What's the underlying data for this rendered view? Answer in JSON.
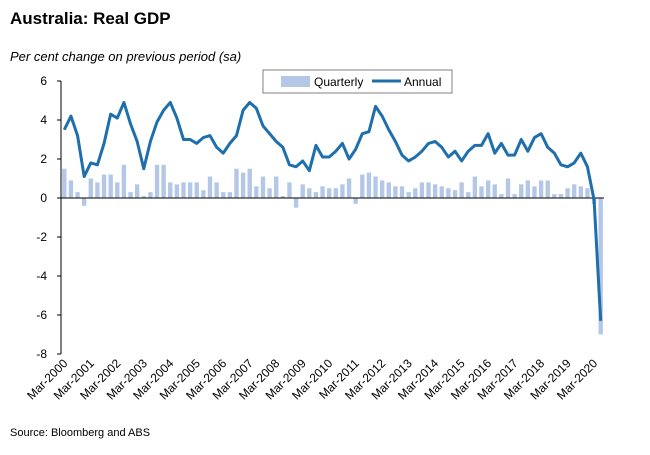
{
  "title": "Australia: Real GDP",
  "subtitle": "Per cent change on previous period (sa)",
  "source": "Source: Bloomberg and ABS",
  "chart_data": {
    "type": "bar+line",
    "ylim": [
      -8,
      6
    ],
    "yticks": [
      "6",
      "4",
      "2",
      "0",
      "-2",
      "-4",
      "-6",
      "-8"
    ],
    "ytick_values": [
      6,
      4,
      2,
      0,
      -2,
      -4,
      -6,
      -8
    ],
    "xtick_labels": [
      "Mar-2000",
      "Mar-2001",
      "Mar-2002",
      "Mar-2003",
      "Mar-2004",
      "Mar-2005",
      "Mar-2006",
      "Mar-2007",
      "Mar-2008",
      "Mar-2009",
      "Mar-2010",
      "Mar-2011",
      "Mar-2012",
      "Mar-2013",
      "Mar-2014",
      "Mar-2015",
      "Mar-2016",
      "Mar-2017",
      "Mar-2018",
      "Mar-2019",
      "Mar-2020"
    ],
    "legend": {
      "position": "top-center",
      "items": [
        "Quarterly",
        "Annual"
      ]
    },
    "colors": {
      "bars": "#b4c7e7",
      "line": "#1f6fad"
    },
    "grid": false,
    "series": [
      {
        "name": "Quarterly",
        "type": "bar",
        "values": [
          1.5,
          0.9,
          0.3,
          -0.4,
          1.0,
          0.8,
          1.2,
          1.2,
          0.8,
          1.7,
          0.3,
          0.7,
          0.1,
          0.3,
          1.7,
          1.7,
          0.8,
          0.7,
          0.8,
          0.8,
          0.8,
          0.4,
          1.1,
          0.8,
          0.3,
          0.3,
          1.5,
          1.3,
          1.5,
          0.6,
          1.1,
          0.5,
          1.1,
          0.1,
          0.8,
          -0.5,
          0.7,
          0.5,
          0.3,
          0.6,
          0.5,
          0.5,
          0.7,
          1.0,
          -0.3,
          1.2,
          1.3,
          1.1,
          0.9,
          0.8,
          0.6,
          0.6,
          0.3,
          0.5,
          0.8,
          0.8,
          0.7,
          0.6,
          0.5,
          0.4,
          0.8,
          0.3,
          1.1,
          0.6,
          0.9,
          0.7,
          0.2,
          1.0,
          0.2,
          0.7,
          0.9,
          0.6,
          0.9,
          0.9,
          0.2,
          0.2,
          0.5,
          0.7,
          0.6,
          0.5,
          -0.3,
          -7.0
        ]
      },
      {
        "name": "Annual",
        "type": "line",
        "values": [
          3.5,
          4.2,
          3.2,
          1.1,
          1.8,
          1.7,
          2.8,
          4.3,
          4.1,
          4.9,
          3.8,
          2.9,
          1.5,
          2.9,
          3.9,
          4.5,
          4.9,
          4.1,
          3.0,
          3.0,
          2.8,
          3.1,
          3.2,
          2.6,
          2.3,
          2.8,
          3.2,
          4.5,
          4.9,
          4.6,
          3.7,
          3.3,
          2.9,
          2.6,
          1.7,
          1.6,
          1.9,
          1.4,
          2.7,
          2.1,
          2.1,
          2.4,
          2.8,
          2.0,
          2.5,
          3.3,
          3.4,
          4.7,
          4.2,
          3.5,
          2.9,
          2.2,
          1.9,
          2.1,
          2.4,
          2.8,
          2.9,
          2.6,
          2.1,
          2.4,
          1.9,
          2.4,
          2.7,
          2.7,
          3.3,
          2.3,
          2.8,
          2.2,
          2.2,
          3.0,
          2.4,
          3.1,
          3.3,
          2.6,
          2.3,
          1.7,
          1.6,
          1.8,
          2.3,
          1.6,
          -0.1,
          -6.3
        ]
      }
    ]
  }
}
